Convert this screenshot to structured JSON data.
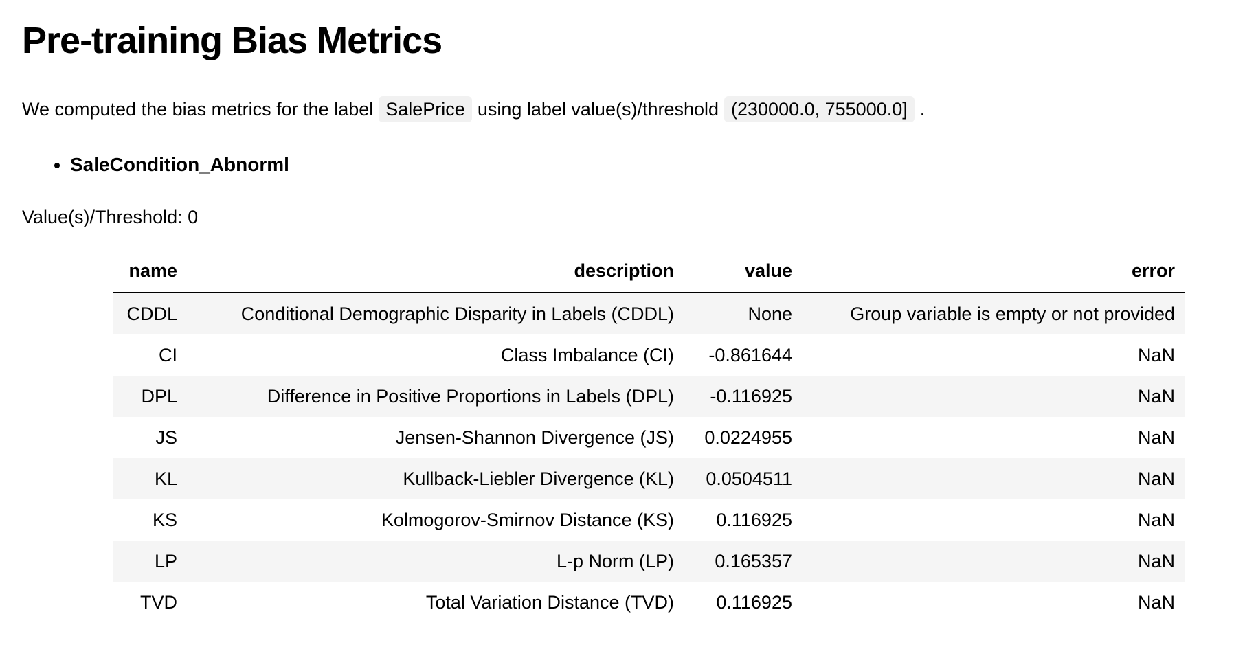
{
  "page": {
    "title": "Pre-training Bias Metrics",
    "intro": {
      "part1": "We computed the bias metrics for the label",
      "label_code": "SalePrice",
      "part2": "using label value(s)/threshold",
      "threshold_code": "(230000.0, 755000.0]",
      "part3": "."
    },
    "facet": "SaleCondition_Abnorml",
    "facet_threshold": "Value(s)/Threshold: 0"
  },
  "table": {
    "columns": [
      "name",
      "description",
      "value",
      "error"
    ],
    "rows": [
      {
        "name": "CDDL",
        "description": "Conditional Demographic Disparity in Labels (CDDL)",
        "value": "None",
        "error": "Group variable is empty or not provided"
      },
      {
        "name": "CI",
        "description": "Class Imbalance (CI)",
        "value": "-0.861644",
        "error": "NaN"
      },
      {
        "name": "DPL",
        "description": "Difference in Positive Proportions in Labels (DPL)",
        "value": "-0.116925",
        "error": "NaN"
      },
      {
        "name": "JS",
        "description": "Jensen-Shannon Divergence (JS)",
        "value": "0.0224955",
        "error": "NaN"
      },
      {
        "name": "KL",
        "description": "Kullback-Liebler Divergence (KL)",
        "value": "0.0504511",
        "error": "NaN"
      },
      {
        "name": "KS",
        "description": "Kolmogorov-Smirnov Distance (KS)",
        "value": "0.116925",
        "error": "NaN"
      },
      {
        "name": "LP",
        "description": "L-p Norm (LP)",
        "value": "0.165357",
        "error": "NaN"
      },
      {
        "name": "TVD",
        "description": "Total Variation Distance (TVD)",
        "value": "0.116925",
        "error": "NaN"
      }
    ]
  },
  "colors": {
    "row_stripe": "#f5f5f5",
    "code_chip_background": "#f1f1f1",
    "header_border": "#000000",
    "text": "#000000",
    "background": "#ffffff"
  }
}
